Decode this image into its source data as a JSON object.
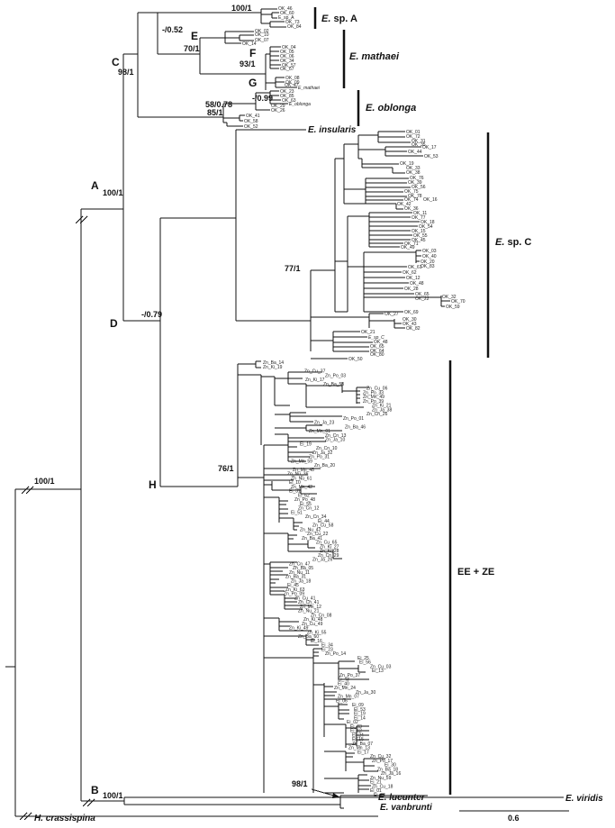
{
  "clades": {
    "sp_a": {
      "genus": "E.",
      "rest": " sp. A"
    },
    "mathaei": "E. mathaei",
    "oblonga": "E. oblonga",
    "sp_c": {
      "genus": "E.",
      "rest": " sp. C"
    },
    "ee_ze": "EE + ZE"
  },
  "taxa": {
    "insularis": "E. insularis",
    "lucunter": "E. lucunter",
    "viridis": "E. viridis",
    "vanbrunti": "E. vanbrunti",
    "crassispina": "H. crassispina",
    "mathaei_ref": "E_mathaei",
    "oblonga_ref": "E_oblonga",
    "spc_ref": "E_sp_C",
    "spa_ref": "E_sp_A"
  },
  "nodes": {
    "A": "A",
    "B": "B",
    "C": "C",
    "D": "D",
    "E": "E",
    "F": "F",
    "G": "G",
    "H": "H"
  },
  "support": {
    "root": "100/1",
    "A": "100/1",
    "B": "100/1",
    "C": "98/1",
    "D": "-/0.79",
    "E": "70/1",
    "F": "93/1",
    "c1": "-/0.52",
    "spa": "100/1",
    "obl1": "58/0.78",
    "obl2": "-/0.99",
    "obl3": "85/1",
    "spc": "77/1",
    "H": "76/1",
    "luc": "98/1"
  },
  "scale": "0.6",
  "leaves": {
    "spa": [
      "OK_46",
      "OK_60",
      "E_sp_A",
      "OK_73",
      "OK_84"
    ],
    "mathaei": [
      "OK_02",
      "OK_10",
      "OK_07",
      "OK_14",
      "OK_04",
      "OK_05",
      "OK_06",
      "OK_34",
      "OK_57",
      "OK_67",
      "OK_08",
      "OK_09",
      "OK_47",
      "E_mathaei"
    ],
    "oblonga": [
      "OK_23",
      "OK_85",
      "OK_63",
      "E_oblonga",
      "OK_26",
      "OK_29",
      "OK_41",
      "OK_58",
      "OK_52"
    ],
    "spc": [
      "OK_01",
      "OK_72",
      "OK_31",
      "OK_35",
      "OK_17",
      "OK_44",
      "OK_53",
      "OK_19",
      "OK_33",
      "OK_38",
      "OK_76",
      "OK_39",
      "OK_56",
      "OK_75",
      "OK_78",
      "OK_74",
      "OK_16",
      "OK_42",
      "OK_36",
      "OK_11",
      "OK_77",
      "OK_18",
      "OK_54",
      "OK_15",
      "OK_55",
      "OK_45",
      "OK_71",
      "OK_49",
      "OK_03",
      "OK_40",
      "OK_20",
      "OK_83",
      "OK_61",
      "OK_62",
      "OK_12",
      "OK_48",
      "OK_28",
      "OK_65",
      "OK_22",
      "OK_32",
      "OK_70",
      "OK_59",
      "OK_69",
      "OK_27",
      "OK_30",
      "OK_43",
      "OK_82",
      "OK_21",
      "E_sp_C",
      "OK_48",
      "OK_65",
      "OK_64",
      "OK_80",
      "OK_50"
    ],
    "eeze": [
      "Zn_Ba_14",
      "Zn_Ki_19",
      "Zn_Cu_37",
      "Zn_Po_03",
      "Zn_Ki_17",
      "Zn_Ba_53",
      "Zn_Cu_06",
      "Zn_Po_33",
      "Zn_Mn_49",
      "Zn_Po_39",
      "Zn_Ki_21",
      "Zn_Ja_38",
      "Zn_Cn_26",
      "Zn_Po_01",
      "Zn_Ja_23",
      "Zn_Ba_46",
      "Zn_Mn_01",
      "Zn_Cn_13",
      "Zn_Ja_10",
      "Ei_19",
      "Zn_Cn_10",
      "Zn_Ja_32",
      "Zn_Po_31",
      "Zn_Mn_59",
      "Zn_Ba_20",
      "Zn_Mn_48",
      "Zn_Nu_36",
      "Zn_Nu_61",
      "Ei_10",
      "Zn_Mn_42",
      "Ei_31",
      "Ei_62",
      "Zn_Po_48",
      "Ei_55",
      "Zn_Cn_12",
      "Ei_51",
      "Zn_Cn_34",
      "Ei_44",
      "Zn_Cu_58",
      "Zn_Nu_42",
      "Zn_Cu_22",
      "Zn_Ba_41",
      "Zn_Cu_65",
      "Zn_Ki_27",
      "Zn_Ki_28",
      "Zn_Cn_29",
      "Zn_Ja_26",
      "Zn_Cn_47",
      "Zn_Ba_05",
      "Zn_Nu_11",
      "Zn_Ba_31",
      "Zn_Ja_18",
      "Ei_45",
      "Zn_Ki_63",
      "Zn_Po_09",
      "Zn_Cu_41",
      "Zn_Cn_41",
      "Zn_Mn_12",
      "Zn_Nu_21",
      "Zn_Cn_08",
      "Zn_Ki_48",
      "Zn_Cu_49",
      "Zn_Ki_49",
      "Zn_Ki_55",
      "Zn_Ba_60",
      "Ei_16",
      "Ei_34",
      "Ei_23",
      "Zn_Po_14",
      "Ei_25",
      "Ei_56",
      "Zn_Cu_03",
      "Ei_13",
      "Zn_Po_37",
      "Ei_43",
      "Ei_40",
      "Zn_Mn_24",
      "Zn_Ja_30",
      "Zn_Mn_07",
      "Ei_06",
      "Ei_09",
      "Ei_53",
      "Ei_19",
      "Ei_14",
      "Ei_02",
      "Ei_03",
      "Ei_12",
      "Ei_24",
      "Ei_15",
      "Zn_Ba_07",
      "Zn_Mn_13",
      "Ei_17",
      "Zn_Cu_32",
      "Zn_Po_17",
      "Ei_30",
      "Zn_Ba_18",
      "Zn_Ja_16",
      "Zn_Nu_59",
      "Ei_21",
      "Zn_Cu_18",
      "Ei_01",
      "Ei_22"
    ]
  }
}
